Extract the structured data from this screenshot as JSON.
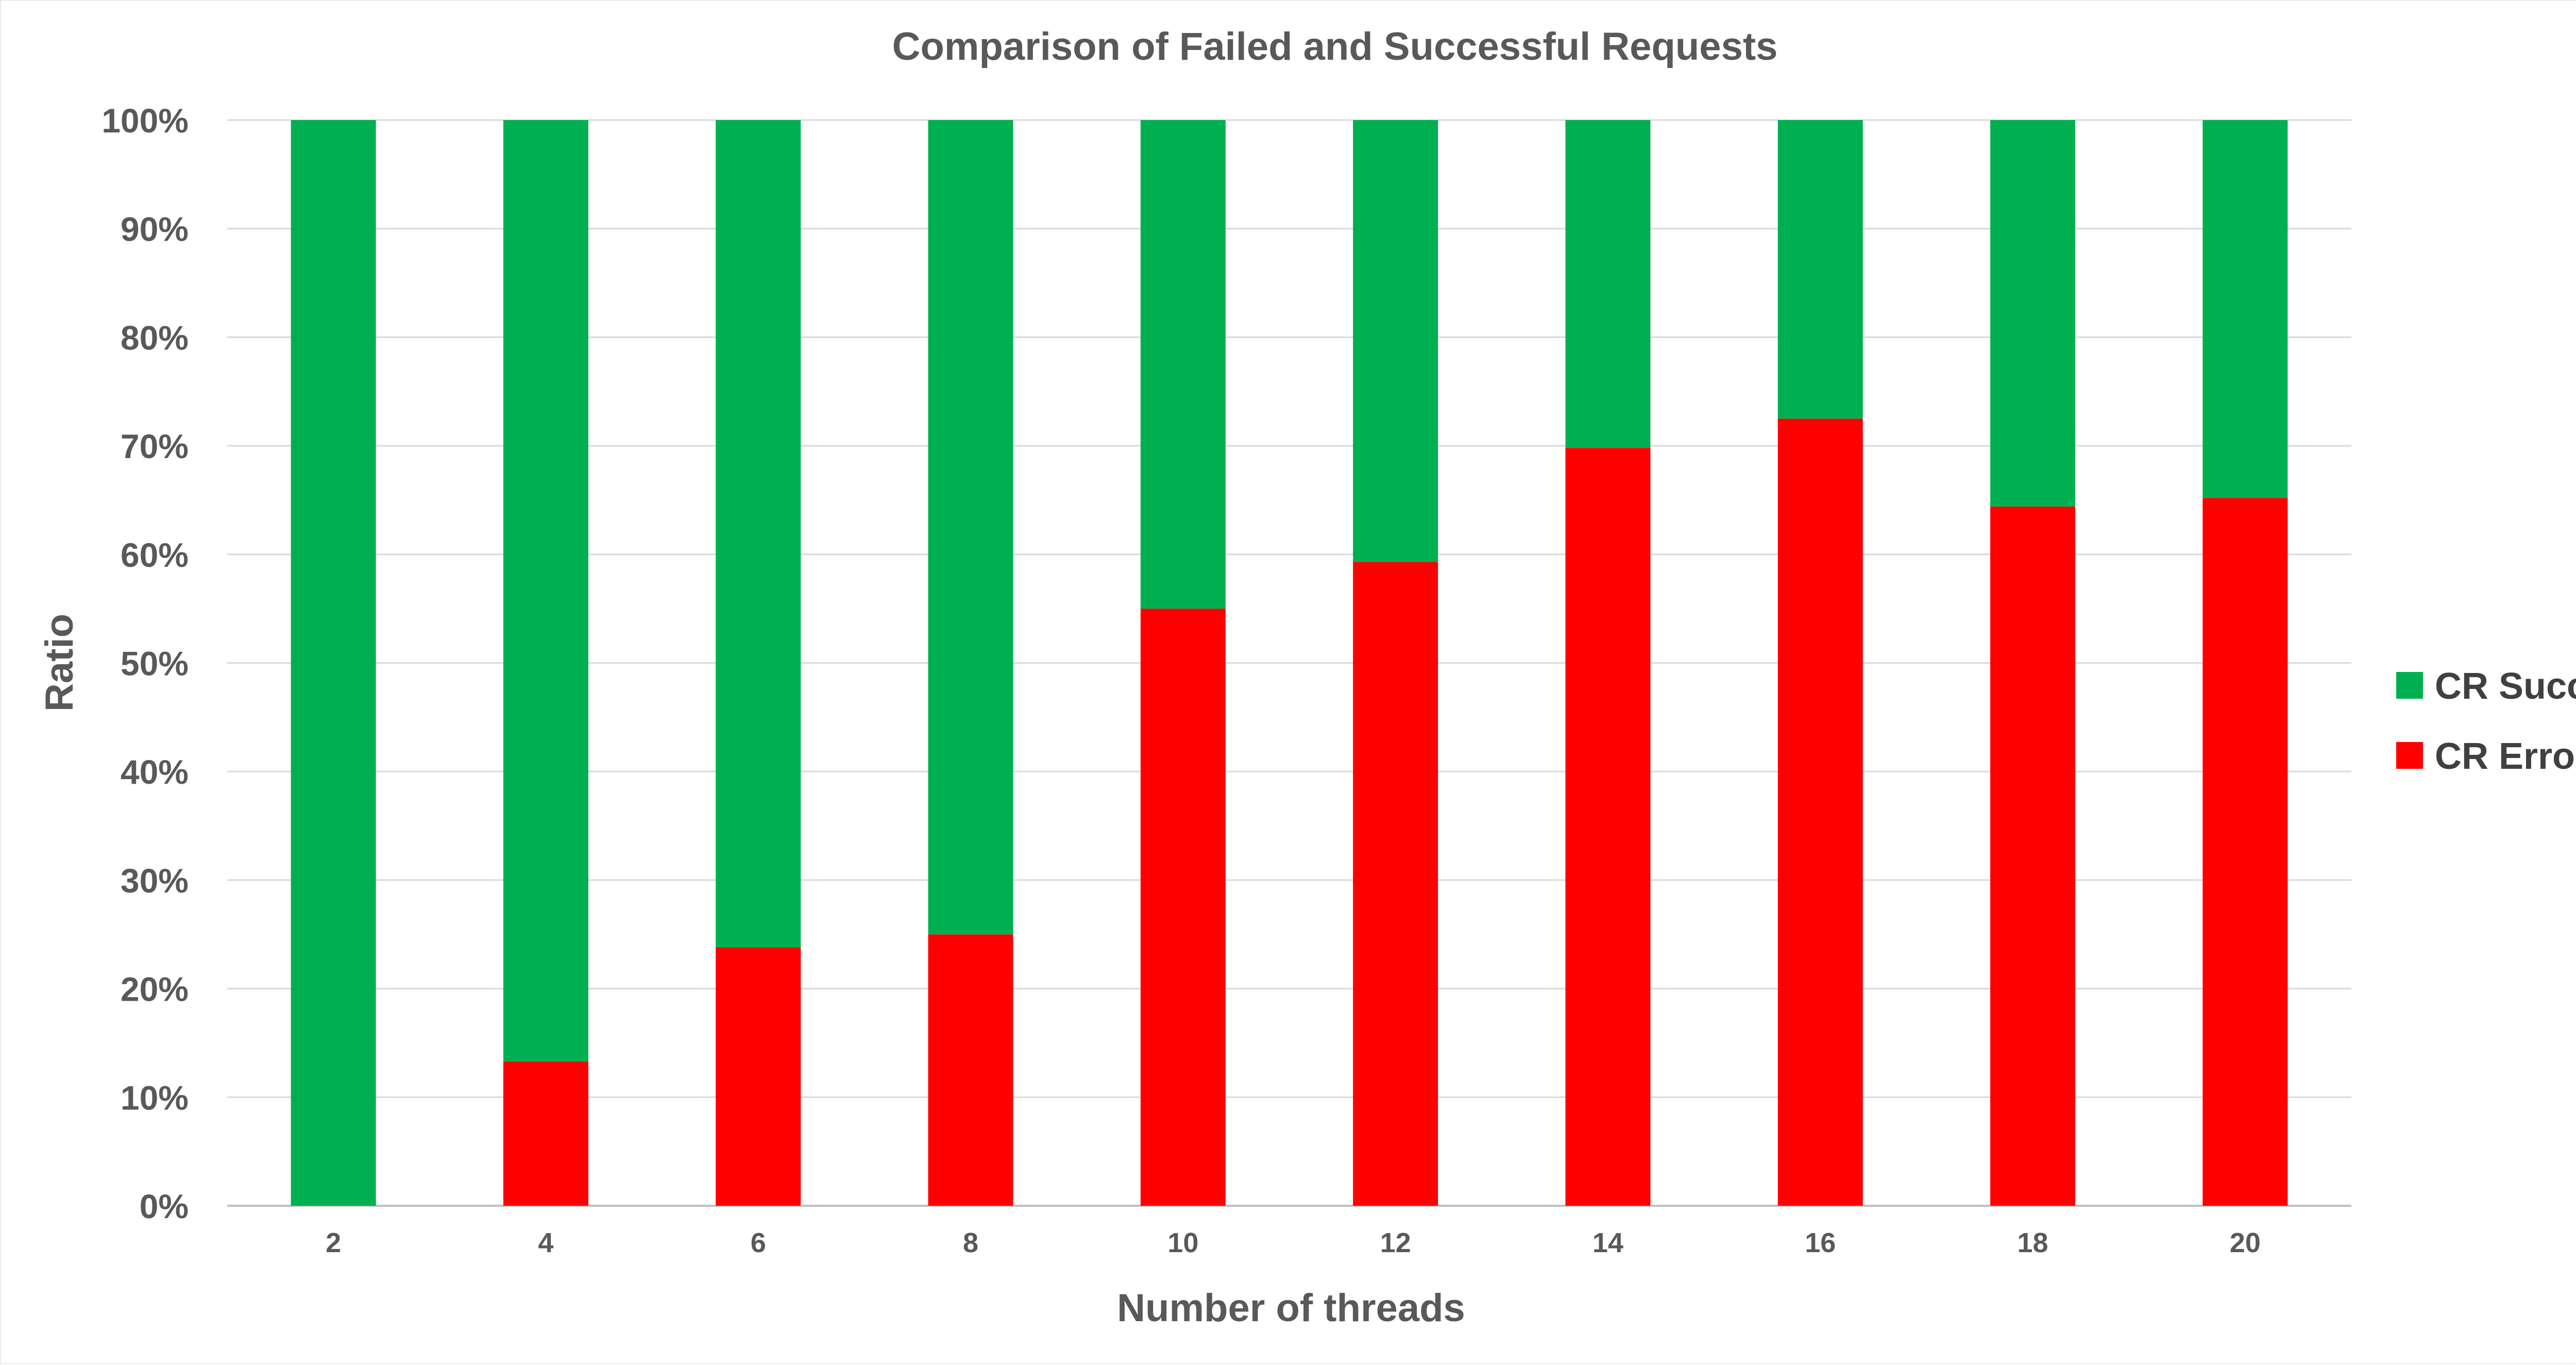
{
  "chart_data": {
    "type": "bar",
    "stacked": true,
    "title": "Comparison of Failed and Successful Requests",
    "xlabel": "Number of threads",
    "ylabel": "Ratio",
    "categories": [
      "2",
      "4",
      "6",
      "8",
      "10",
      "12",
      "14",
      "16",
      "18",
      "20"
    ],
    "yticks": [
      "0%",
      "10%",
      "20%",
      "30%",
      "40%",
      "50%",
      "60%",
      "70%",
      "80%",
      "90%",
      "100%"
    ],
    "ylim": [
      0,
      100
    ],
    "grid": true,
    "legend_position": "right",
    "series": [
      {
        "name": "CR Error",
        "color": "#ff0000",
        "values": [
          0,
          13.3,
          23.8,
          25.0,
          55.0,
          59.3,
          69.8,
          72.5,
          64.4,
          65.2
        ]
      },
      {
        "name": "CR Success",
        "color": "#00b050",
        "values": [
          100,
          86.7,
          76.2,
          75.0,
          45.0,
          40.7,
          30.2,
          27.5,
          35.6,
          34.8
        ]
      }
    ],
    "legend_order": [
      "CR Success",
      "CR Error"
    ]
  }
}
